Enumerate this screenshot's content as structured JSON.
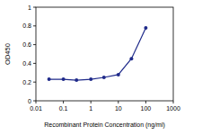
{
  "chart_data": {
    "type": "line",
    "x_label": "Recombinant Protein Concentration (ng/ml)",
    "y_label": "OD450",
    "x": [
      0.03,
      0.1,
      0.3,
      1,
      3,
      10,
      30,
      100
    ],
    "values": [
      0.23,
      0.23,
      0.22,
      0.23,
      0.25,
      0.28,
      0.45,
      0.78
    ],
    "color": "#1f2a8a",
    "marker": "circle",
    "log": "x",
    "xlim": [
      0.01,
      1000
    ],
    "ylim": [
      0,
      1
    ],
    "xticks": [
      0.01,
      0.1,
      1,
      10,
      100,
      1000
    ],
    "yticks": [
      0,
      0.2,
      0.4,
      0.6,
      0.8,
      1
    ],
    "grid": false
  }
}
